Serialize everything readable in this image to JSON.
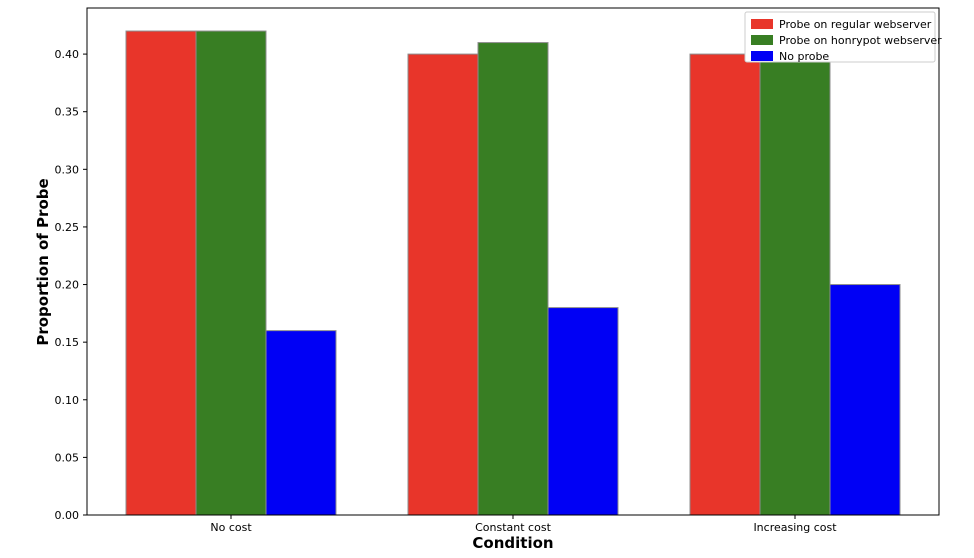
{
  "chart_data": {
    "type": "bar",
    "title": "",
    "xlabel": "Condition",
    "ylabel": "Proportion of Probe",
    "categories": [
      "No cost",
      "Constant cost",
      "Increasing cost"
    ],
    "series": [
      {
        "name": "Probe on regular webserver",
        "color": "#e8352a",
        "values": [
          0.42,
          0.4,
          0.4
        ]
      },
      {
        "name": "Probe on honrypot webserver",
        "color": "#387e23",
        "values": [
          0.42,
          0.41,
          0.4
        ]
      },
      {
        "name": "No probe",
        "color": "#0000f5",
        "values": [
          0.16,
          0.18,
          0.2
        ]
      }
    ],
    "ylim": [
      0,
      0.44
    ],
    "yticks": [
      "0.00",
      "0.05",
      "0.10",
      "0.15",
      "0.20",
      "0.25",
      "0.30",
      "0.35",
      "0.40"
    ],
    "grid": false,
    "legend_position": "top-right"
  }
}
